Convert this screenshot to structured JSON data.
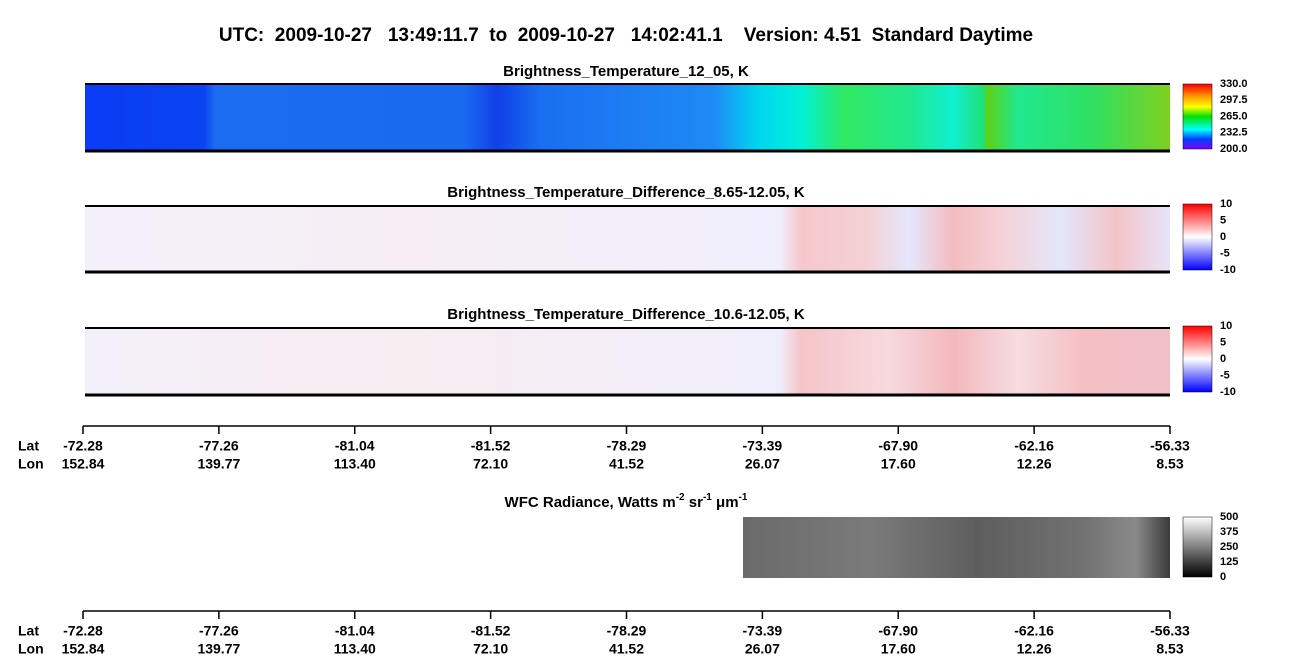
{
  "title": "UTC:  2009-10-27   13:49:11.7  to  2009-10-27   14:02:41.1    Version: 4.51  Standard Daytime",
  "panels": [
    {
      "title": "Brightness_Temperature_12_05, K",
      "colorbar_ticks": [
        "330.0",
        "297.5",
        "265.0",
        "232.5",
        "200.0"
      ]
    },
    {
      "title": "Brightness_Temperature_Difference_8.65-12.05, K",
      "colorbar_ticks": [
        "10",
        "5",
        "0",
        "-5",
        "-10"
      ]
    },
    {
      "title": "Brightness_Temperature_Difference_10.6-12.05, K",
      "colorbar_ticks": [
        "10",
        "5",
        "0",
        "-5",
        "-10"
      ]
    }
  ],
  "wfc": {
    "title": [
      "WFC Radiance, Watts m",
      "-2",
      " sr",
      "-1",
      " μm",
      "-1"
    ],
    "colorbar_ticks": [
      "500",
      "375",
      "250",
      "125",
      "0"
    ]
  },
  "axes": [
    {
      "lat_label": "Lat",
      "lon_label": "Lon",
      "lat": [
        "-72.28",
        "-77.26",
        "-81.04",
        "-81.52",
        "-78.29",
        "-73.39",
        "-67.90",
        "-62.16",
        "-56.33"
      ],
      "lon": [
        "152.84",
        "139.77",
        "113.40",
        "72.10",
        "41.52",
        "26.07",
        "17.60",
        "12.26",
        "8.53"
      ]
    },
    {
      "lat_label": "Lat",
      "lon_label": "Lon",
      "lat": [
        "-72.28",
        "-77.26",
        "-81.04",
        "-81.52",
        "-78.29",
        "-73.39",
        "-67.90",
        "-62.16",
        "-56.33"
      ],
      "lon": [
        "152.84",
        "139.77",
        "113.40",
        "72.10",
        "41.52",
        "26.07",
        "17.60",
        "12.26",
        "8.53"
      ]
    }
  ]
}
